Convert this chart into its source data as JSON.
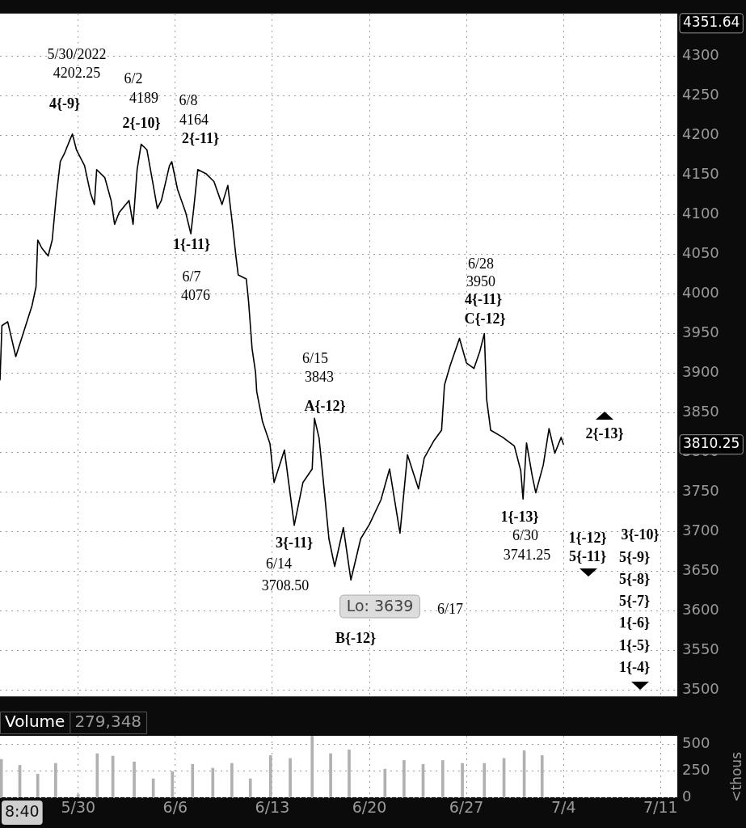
{
  "chart_data": [
    {
      "type": "line",
      "xlim": [
        "2022-05-24T08:40",
        "2022-07-12T05:00"
      ],
      "ylim": [
        3492,
        4354
      ],
      "xticks": [
        {
          "value": "2022-05-30",
          "label": null
        },
        {
          "value": "2022-06-06",
          "label": null
        },
        {
          "value": "2022-06-13",
          "label": null
        },
        {
          "value": "2022-06-20",
          "label": null
        },
        {
          "value": "2022-06-27",
          "label": null
        },
        {
          "value": "2022-07-04",
          "label": null
        },
        {
          "value": "2022-07-11",
          "label": null
        }
      ],
      "yticks": [
        3500,
        3550,
        3600,
        3650,
        3700,
        3750,
        3800,
        3850,
        3900,
        3950,
        4000,
        4050,
        4100,
        4150,
        4200,
        4250,
        4300
      ],
      "tick_labels": "y",
      "grid": true,
      "legend": false,
      "marker": "none",
      "line_style": "solid",
      "series": [
        {
          "color": "#000000",
          "x": [
            "2022-05-24T08:40",
            "2022-05-24T12:00",
            "2022-05-24T22:00",
            "2022-05-25T12:00",
            "2022-05-26T16:00",
            "2022-05-26T23:00",
            "2022-05-27T02:00",
            "2022-05-27T09:00",
            "2022-05-27T20:00",
            "2022-05-28T03:00",
            "2022-05-28T10:00",
            "2022-05-28T17:00",
            "2022-05-29T00:00",
            "2022-05-29T11:00",
            "2022-05-29T14:00",
            "2022-05-29T21:00",
            "2022-05-30T11:00",
            "2022-05-30T21:00",
            "2022-05-31T04:00",
            "2022-05-31T08:00",
            "2022-05-31T22:00",
            "2022-06-01T09:00",
            "2022-06-01T15:00",
            "2022-06-01T23:00",
            "2022-06-02T16:00",
            "2022-06-02T23:00",
            "2022-06-03T06:00",
            "2022-06-03T13:00",
            "2022-06-03T23:00",
            "2022-06-04T10:00",
            "2022-06-04T17:00",
            "2022-06-05T00:00",
            "2022-06-05T14:00",
            "2022-06-05T18:00",
            "2022-06-06T04:00",
            "2022-06-06T18:00",
            "2022-06-07T03:00",
            "2022-06-07T08:00",
            "2022-06-07T15:00",
            "2022-06-08T05:00",
            "2022-06-08T19:00",
            "2022-06-09T09:00",
            "2022-06-09T19:00",
            "2022-06-10T03:00",
            "2022-06-10T09:00",
            "2022-06-10T13:00",
            "2022-06-11T03:00",
            "2022-06-11T07:00",
            "2022-06-11T13:00",
            "2022-06-11T19:00",
            "2022-06-11T21:00",
            "2022-06-12T07:00",
            "2022-06-12T20:00",
            "2022-06-13T03:00",
            "2022-06-13T21:00",
            "2022-06-14T14:00",
            "2022-06-15T05:00",
            "2022-06-15T21:00",
            "2022-06-16T01:00",
            "2022-06-16T09:00",
            "2022-06-16T19:00",
            "2022-06-17T02:00",
            "2022-06-17T12:00",
            "2022-06-18T03:00",
            "2022-06-18T16:00",
            "2022-06-19T09:00",
            "2022-06-20T00:00",
            "2022-06-20T20:00",
            "2022-06-21T11:00",
            "2022-06-22T05:00",
            "2022-06-22T18:00",
            "2022-06-23T13:00",
            "2022-06-23T23:00",
            "2022-06-24T15:00",
            "2022-06-25T05:00",
            "2022-06-25T10:00",
            "2022-06-25T20:00",
            "2022-06-26T12:00",
            "2022-06-27T00:00",
            "2022-06-27T13:00",
            "2022-06-27T23:00",
            "2022-06-28T07:00",
            "2022-06-28T11:00",
            "2022-06-28T18:00",
            "2022-06-29T15:00",
            "2022-06-30T11:00",
            "2022-06-30T22:00",
            "2022-07-01T02:00",
            "2022-07-01T08:00",
            "2022-07-01T18:00",
            "2022-07-02T00:00",
            "2022-07-02T13:00",
            "2022-07-02T23:00",
            "2022-07-03T09:00",
            "2022-07-03T20:00",
            "2022-07-04T00:00"
          ],
          "values": [
            3891,
            3960,
            3965,
            3921,
            3985,
            4009,
            4068,
            4058,
            4048,
            4068,
            4123,
            4167,
            4177,
            4197,
            4202,
            4182,
            4162,
            4128,
            4113,
            4157,
            4147,
            4118,
            4088,
            4103,
            4118,
            4088,
            4157,
            4189,
            4182,
            4137,
            4108,
            4118,
            4162,
            4167,
            4132,
            4103,
            4076,
            4108,
            4157,
            4152,
            4142,
            4113,
            4137,
            4088,
            4048,
            4024,
            4019,
            3990,
            3931,
            3901,
            3877,
            3839,
            3811,
            3762,
            3803,
            3708,
            3762,
            3779,
            3843,
            3818,
            3744,
            3691,
            3656,
            3705,
            3639,
            3691,
            3709,
            3740,
            3779,
            3698,
            3797,
            3754,
            3793,
            3814,
            3828,
            3885,
            3910,
            3944,
            3913,
            3906,
            3927,
            3950,
            3867,
            3828,
            3819,
            3808,
            3777,
            3741,
            3812,
            3770,
            3749,
            3784,
            3830,
            3799,
            3819,
            3810
          ]
        }
      ],
      "annotations": [
        "5/30/2022",
        "4202.25",
        "4{-9}",
        "6/2",
        "4189",
        "2{-10}",
        "6/8",
        "4164",
        "2{-11}",
        "1{-11}",
        "6/7",
        "4076",
        "6/15",
        "3843",
        "A{-12}",
        "3{-11}",
        "6/14",
        "3708.50",
        "Lo: 3639",
        "6/17",
        "B{-12}",
        "6/28",
        "3950",
        "4{-11}",
        "C{-12}",
        "1{-13}",
        "6/30",
        "3741.25",
        "2{-13}",
        "1{-12}",
        "5{-11}",
        "3{-10}",
        "5{-9}",
        "5{-8}",
        "5{-7}",
        "1{-6}",
        "1{-5}",
        "1{-4}",
        "3810.25",
        "4351.64"
      ]
    },
    {
      "type": "bar",
      "xlim": [
        "2022-05-24T08:40",
        "2022-07-12T05:00"
      ],
      "ylim": [
        0,
        576
      ],
      "ylabel": "<thous",
      "xticks": [
        {
          "value": "2022-05-30",
          "label": "5/30"
        },
        {
          "value": "2022-06-06",
          "label": "6/6"
        },
        {
          "value": "2022-06-13",
          "label": "6/13"
        },
        {
          "value": "2022-06-20",
          "label": "6/20"
        },
        {
          "value": "2022-06-27",
          "label": "6/27"
        },
        {
          "value": "2022-07-04",
          "label": "7/4"
        },
        {
          "value": "2022-07-11",
          "label": "7/11"
        }
      ],
      "yticks": [
        0,
        250,
        500
      ],
      "grid": true,
      "legend": false,
      "series": [
        {
          "color": "#b0b0b0",
          "x": [
            "2022-05-24T11:00",
            "2022-05-25T19:00",
            "2022-05-27T02:00",
            "2022-05-28T09:00",
            "2022-05-30T00:00",
            "2022-05-31T09:00",
            "2022-06-01T12:00",
            "2022-06-03T01:00",
            "2022-06-04T10:00",
            "2022-06-05T19:00",
            "2022-06-07T06:00",
            "2022-06-08T17:00",
            "2022-06-10T02:00",
            "2022-06-11T10:00",
            "2022-06-12T21:00",
            "2022-06-14T07:00",
            "2022-06-15T21:00",
            "2022-06-17T05:00",
            "2022-06-18T13:00",
            "2022-06-21T03:00",
            "2022-06-22T12:00",
            "2022-06-23T21:00",
            "2022-06-25T07:00",
            "2022-06-26T17:00",
            "2022-06-28T07:00",
            "2022-06-29T17:00",
            "2022-07-01T04:00",
            "2022-07-02T11:00"
          ],
          "values": [
            355,
            300,
            218,
            318,
            27,
            409,
            386,
            332,
            173,
            241,
            309,
            273,
            318,
            173,
            391,
            364,
            573,
            409,
            445,
            264,
            345,
            309,
            345,
            318,
            318,
            364,
            436,
            391
          ]
        }
      ],
      "annotations": [
        "Volume",
        "279,348",
        "8:40"
      ]
    }
  ]
}
